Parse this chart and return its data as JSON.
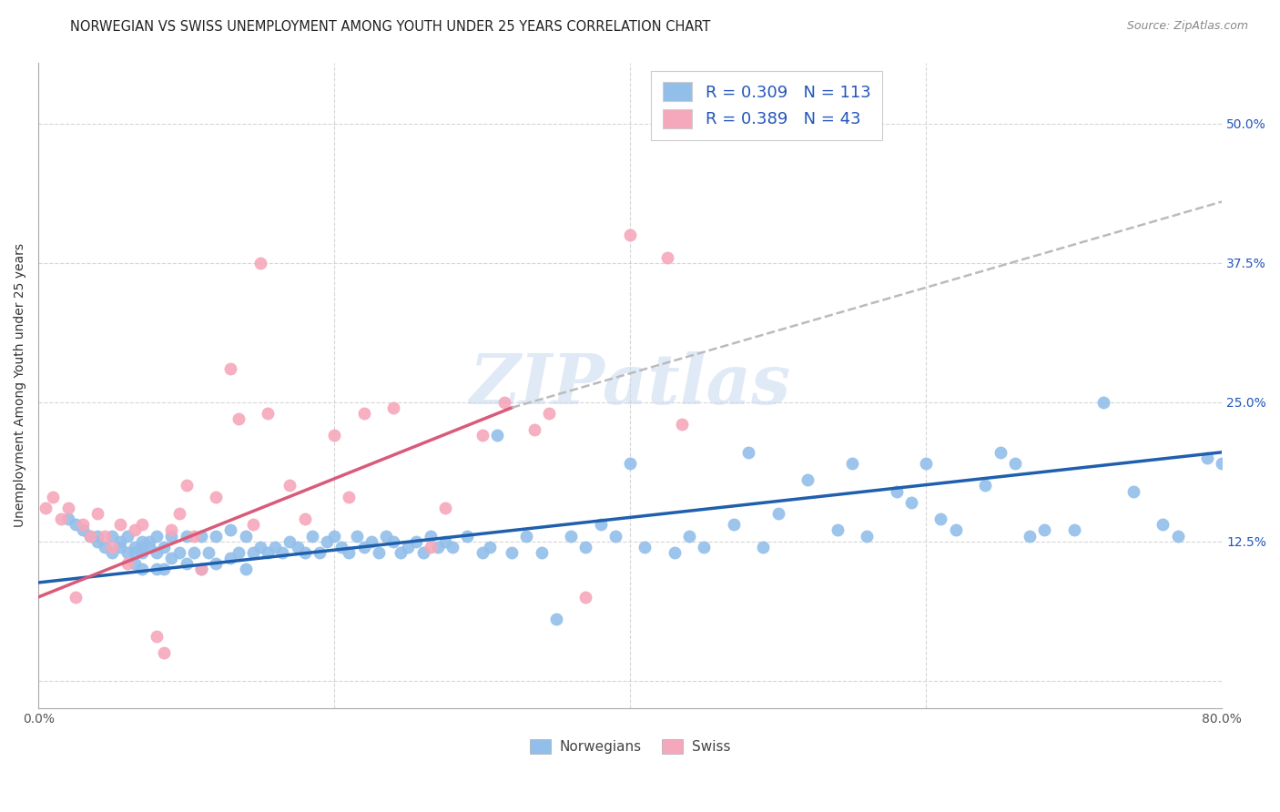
{
  "title": "NORWEGIAN VS SWISS UNEMPLOYMENT AMONG YOUTH UNDER 25 YEARS CORRELATION CHART",
  "source": "Source: ZipAtlas.com",
  "ylabel": "Unemployment Among Youth under 25 years",
  "xlim": [
    0.0,
    0.8
  ],
  "ylim": [
    -0.025,
    0.555
  ],
  "x_ticks": [
    0.0,
    0.2,
    0.4,
    0.6,
    0.8
  ],
  "x_tick_labels": [
    "0.0%",
    "",
    "",
    "",
    "80.0%"
  ],
  "y_ticks": [
    0.0,
    0.125,
    0.25,
    0.375,
    0.5
  ],
  "y_tick_labels_right": [
    "",
    "12.5%",
    "25.0%",
    "37.5%",
    "50.0%"
  ],
  "norwegian_color": "#92BFEA",
  "swiss_color": "#F5A8BB",
  "norwegian_line_color": "#1F5FAD",
  "swiss_line_color": "#D95B7A",
  "dashed_line_color": "#BBBBBB",
  "R_norwegian": 0.309,
  "N_norwegian": 113,
  "R_swiss": 0.389,
  "N_swiss": 43,
  "watermark": "ZIPatlas",
  "background_color": "#ffffff",
  "grid_color": "#cccccc",
  "title_fontsize": 10.5,
  "axis_label_fontsize": 10,
  "tick_fontsize": 10,
  "legend_text_color": "#2255BB",
  "nor_trend": [
    0.0,
    0.8,
    0.088,
    0.205
  ],
  "swi_trend_solid": [
    0.0,
    0.32,
    0.075,
    0.245
  ],
  "swi_trend_dashed": [
    0.32,
    0.8,
    0.245,
    0.43
  ],
  "norwegian_x": [
    0.02,
    0.025,
    0.03,
    0.035,
    0.04,
    0.04,
    0.045,
    0.05,
    0.05,
    0.055,
    0.055,
    0.06,
    0.06,
    0.065,
    0.065,
    0.065,
    0.07,
    0.07,
    0.07,
    0.07,
    0.075,
    0.075,
    0.08,
    0.08,
    0.08,
    0.085,
    0.085,
    0.09,
    0.09,
    0.095,
    0.1,
    0.1,
    0.105,
    0.11,
    0.11,
    0.115,
    0.12,
    0.12,
    0.13,
    0.13,
    0.135,
    0.14,
    0.14,
    0.145,
    0.15,
    0.155,
    0.16,
    0.165,
    0.17,
    0.175,
    0.18,
    0.185,
    0.19,
    0.195,
    0.2,
    0.205,
    0.21,
    0.215,
    0.22,
    0.225,
    0.23,
    0.235,
    0.24,
    0.245,
    0.25,
    0.255,
    0.26,
    0.265,
    0.27,
    0.275,
    0.28,
    0.29,
    0.3,
    0.305,
    0.31,
    0.32,
    0.33,
    0.34,
    0.35,
    0.36,
    0.37,
    0.38,
    0.39,
    0.4,
    0.41,
    0.43,
    0.44,
    0.45,
    0.47,
    0.48,
    0.49,
    0.5,
    0.52,
    0.54,
    0.55,
    0.56,
    0.58,
    0.59,
    0.6,
    0.61,
    0.62,
    0.64,
    0.65,
    0.66,
    0.67,
    0.68,
    0.7,
    0.72,
    0.74,
    0.76,
    0.77,
    0.79,
    0.8
  ],
  "norwegian_y": [
    0.145,
    0.14,
    0.135,
    0.13,
    0.125,
    0.13,
    0.12,
    0.115,
    0.13,
    0.12,
    0.125,
    0.115,
    0.13,
    0.105,
    0.115,
    0.12,
    0.1,
    0.115,
    0.12,
    0.125,
    0.12,
    0.125,
    0.1,
    0.115,
    0.13,
    0.1,
    0.12,
    0.11,
    0.13,
    0.115,
    0.105,
    0.13,
    0.115,
    0.1,
    0.13,
    0.115,
    0.105,
    0.13,
    0.11,
    0.135,
    0.115,
    0.1,
    0.13,
    0.115,
    0.12,
    0.115,
    0.12,
    0.115,
    0.125,
    0.12,
    0.115,
    0.13,
    0.115,
    0.125,
    0.13,
    0.12,
    0.115,
    0.13,
    0.12,
    0.125,
    0.115,
    0.13,
    0.125,
    0.115,
    0.12,
    0.125,
    0.115,
    0.13,
    0.12,
    0.125,
    0.12,
    0.13,
    0.115,
    0.12,
    0.22,
    0.115,
    0.13,
    0.115,
    0.055,
    0.13,
    0.12,
    0.14,
    0.13,
    0.195,
    0.12,
    0.115,
    0.13,
    0.12,
    0.14,
    0.205,
    0.12,
    0.15,
    0.18,
    0.135,
    0.195,
    0.13,
    0.17,
    0.16,
    0.195,
    0.145,
    0.135,
    0.175,
    0.205,
    0.195,
    0.13,
    0.135,
    0.135,
    0.25,
    0.17,
    0.14,
    0.13,
    0.2,
    0.195
  ],
  "swiss_x": [
    0.005,
    0.01,
    0.015,
    0.02,
    0.025,
    0.03,
    0.035,
    0.04,
    0.045,
    0.05,
    0.055,
    0.06,
    0.065,
    0.07,
    0.08,
    0.085,
    0.09,
    0.095,
    0.1,
    0.105,
    0.11,
    0.12,
    0.13,
    0.135,
    0.145,
    0.15,
    0.155,
    0.17,
    0.18,
    0.2,
    0.21,
    0.22,
    0.24,
    0.265,
    0.275,
    0.3,
    0.315,
    0.335,
    0.345,
    0.37,
    0.4,
    0.425,
    0.435
  ],
  "swiss_y": [
    0.155,
    0.165,
    0.145,
    0.155,
    0.075,
    0.14,
    0.13,
    0.15,
    0.13,
    0.12,
    0.14,
    0.105,
    0.135,
    0.14,
    0.04,
    0.025,
    0.135,
    0.15,
    0.175,
    0.13,
    0.1,
    0.165,
    0.28,
    0.235,
    0.14,
    0.375,
    0.24,
    0.175,
    0.145,
    0.22,
    0.165,
    0.24,
    0.245,
    0.12,
    0.155,
    0.22,
    0.25,
    0.225,
    0.24,
    0.075,
    0.4,
    0.38,
    0.23
  ]
}
